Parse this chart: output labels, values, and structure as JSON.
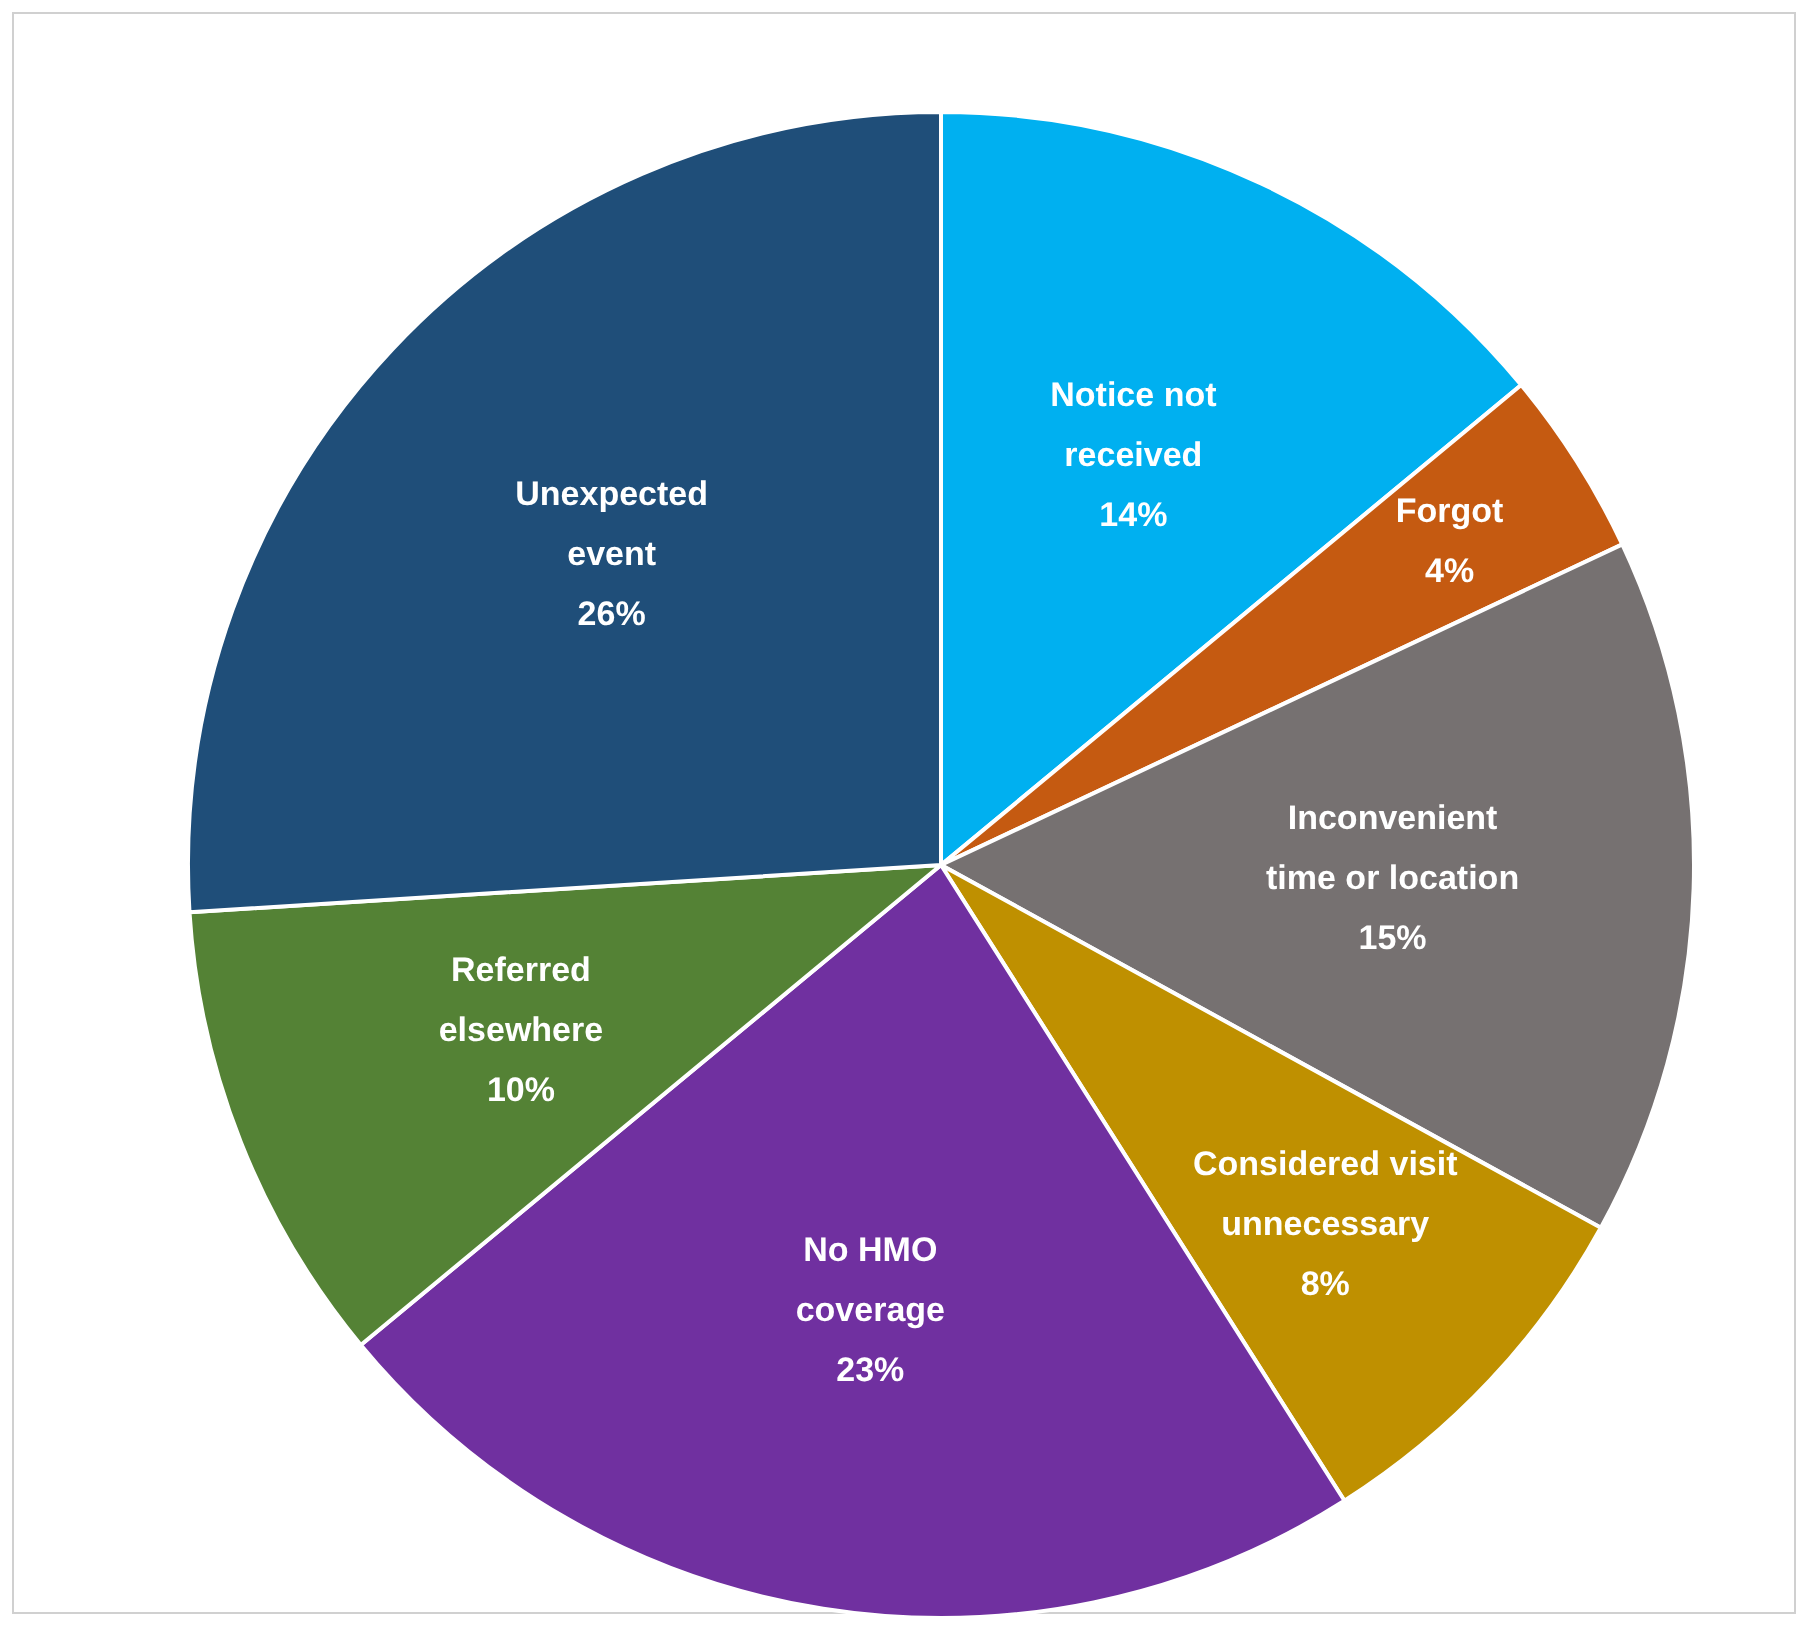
{
  "chart_data": {
    "type": "pie",
    "categories": [
      "Notice not\nreceived",
      "Forgot",
      "Inconvenient\ntime or location",
      "Considered visit\nunnecessary",
      "No HMO\ncoverage",
      "Referred\nelsewhere",
      "Unexpected\nevent"
    ],
    "values": [
      14,
      4,
      15,
      8,
      23,
      10,
      26
    ],
    "value_labels": [
      "14%",
      "4%",
      "15%",
      "8%",
      "23%",
      "10%",
      "26%"
    ],
    "colors": [
      "#00b0f0",
      "#c55a11",
      "#767171",
      "#bf9000",
      "#7030a0",
      "#548235",
      "#1f4e79"
    ]
  }
}
